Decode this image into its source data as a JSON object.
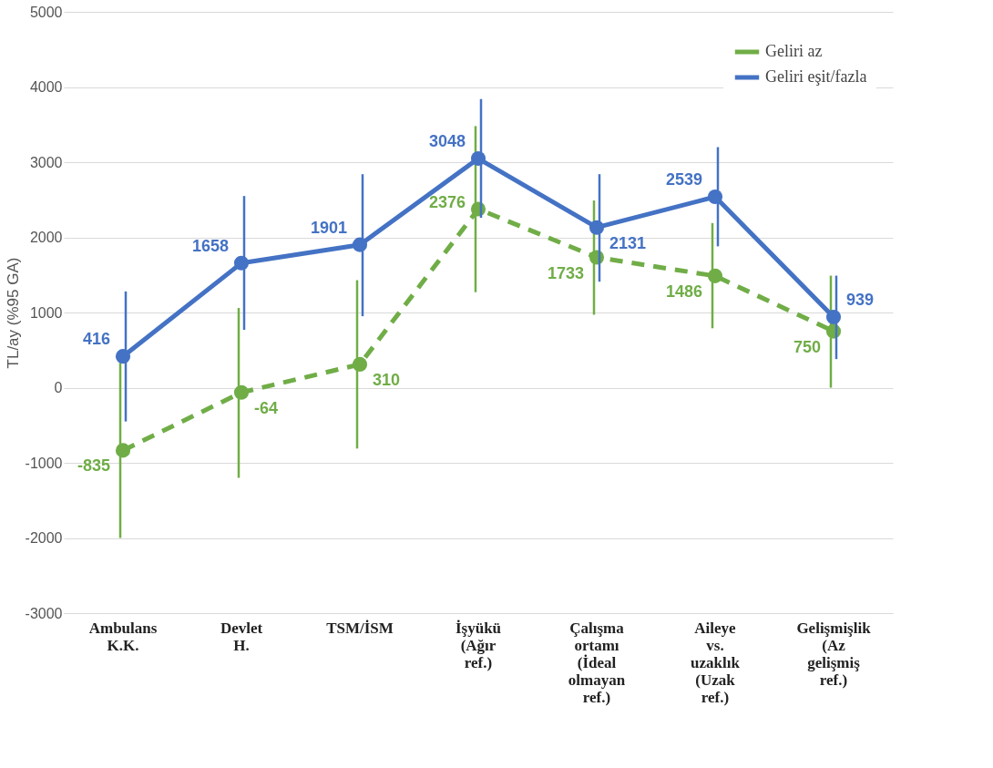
{
  "chart_data": {
    "type": "line",
    "categories": [
      "Ambulans K.K.",
      "Devlet H.",
      "TSM/İSM",
      "İşyükü (Ağır ref.)",
      "Çalışma ortamı (İdeal olmayan ref.)",
      "Aileye vs. uzaklık (Uzak ref.)",
      "Gelişmişlik (Az gelişmiş ref.)"
    ],
    "series": [
      {
        "name": "Geliri az",
        "color": "#70ad47",
        "line_style": "dashed",
        "values": [
          -835,
          -64,
          310,
          2376,
          1733,
          1486,
          750
        ],
        "errors": [
          [
            -2000,
            330
          ],
          [
            -1200,
            1060
          ],
          [
            -810,
            1430
          ],
          [
            1270,
            3480
          ],
          [
            970,
            2490
          ],
          [
            790,
            2190
          ],
          [
            0,
            1490
          ]
        ]
      },
      {
        "name": "Geliri eşit/fazla",
        "color": "#4472c4",
        "line_style": "solid",
        "values": [
          416,
          1658,
          1901,
          3048,
          2131,
          2539,
          939
        ],
        "errors": [
          [
            -450,
            1280
          ],
          [
            770,
            2550
          ],
          [
            950,
            2840
          ],
          [
            2260,
            3840
          ],
          [
            1410,
            2840
          ],
          [
            1880,
            3200
          ],
          [
            380,
            1490
          ]
        ]
      }
    ],
    "ylabel": "TL/ay (%95 GA)",
    "ylim": [
      -3000,
      5000
    ],
    "yticks": [
      -3000,
      -2000,
      -1000,
      0,
      1000,
      2000,
      3000,
      4000,
      5000
    ],
    "grid": "y",
    "legend": "top right",
    "marker": "circle",
    "data_labels": true
  }
}
